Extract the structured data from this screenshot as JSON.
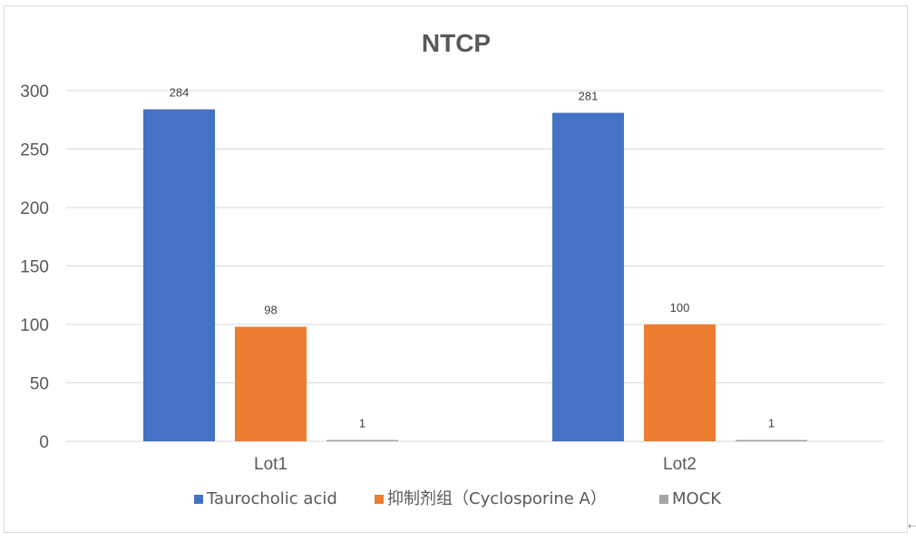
{
  "chart_data": {
    "type": "bar",
    "title": "NTCP",
    "xlabel": "",
    "ylabel": "",
    "categories": [
      "Lot1",
      "Lot2"
    ],
    "series": [
      {
        "name": "Taurocholic acid",
        "color": "#4472c4",
        "values": [
          284,
          281
        ]
      },
      {
        "name": "抑制剂组（Cyclosporine A）",
        "color": "#ed7d31",
        "values": [
          98,
          100
        ]
      },
      {
        "name": "MOCK",
        "color": "#a5a5a5",
        "values": [
          1,
          1
        ]
      }
    ],
    "ylim": [
      0,
      300
    ],
    "yticks": [
      0,
      50,
      100,
      150,
      200,
      250,
      300
    ],
    "grid": true,
    "legend_position": "bottom",
    "data_labels": true
  },
  "colors": {
    "gridline": "#d9d9d9",
    "axis_text": "#595959",
    "title_text": "#595959",
    "label_text": "#404040"
  },
  "resize_glyph": "⇠"
}
